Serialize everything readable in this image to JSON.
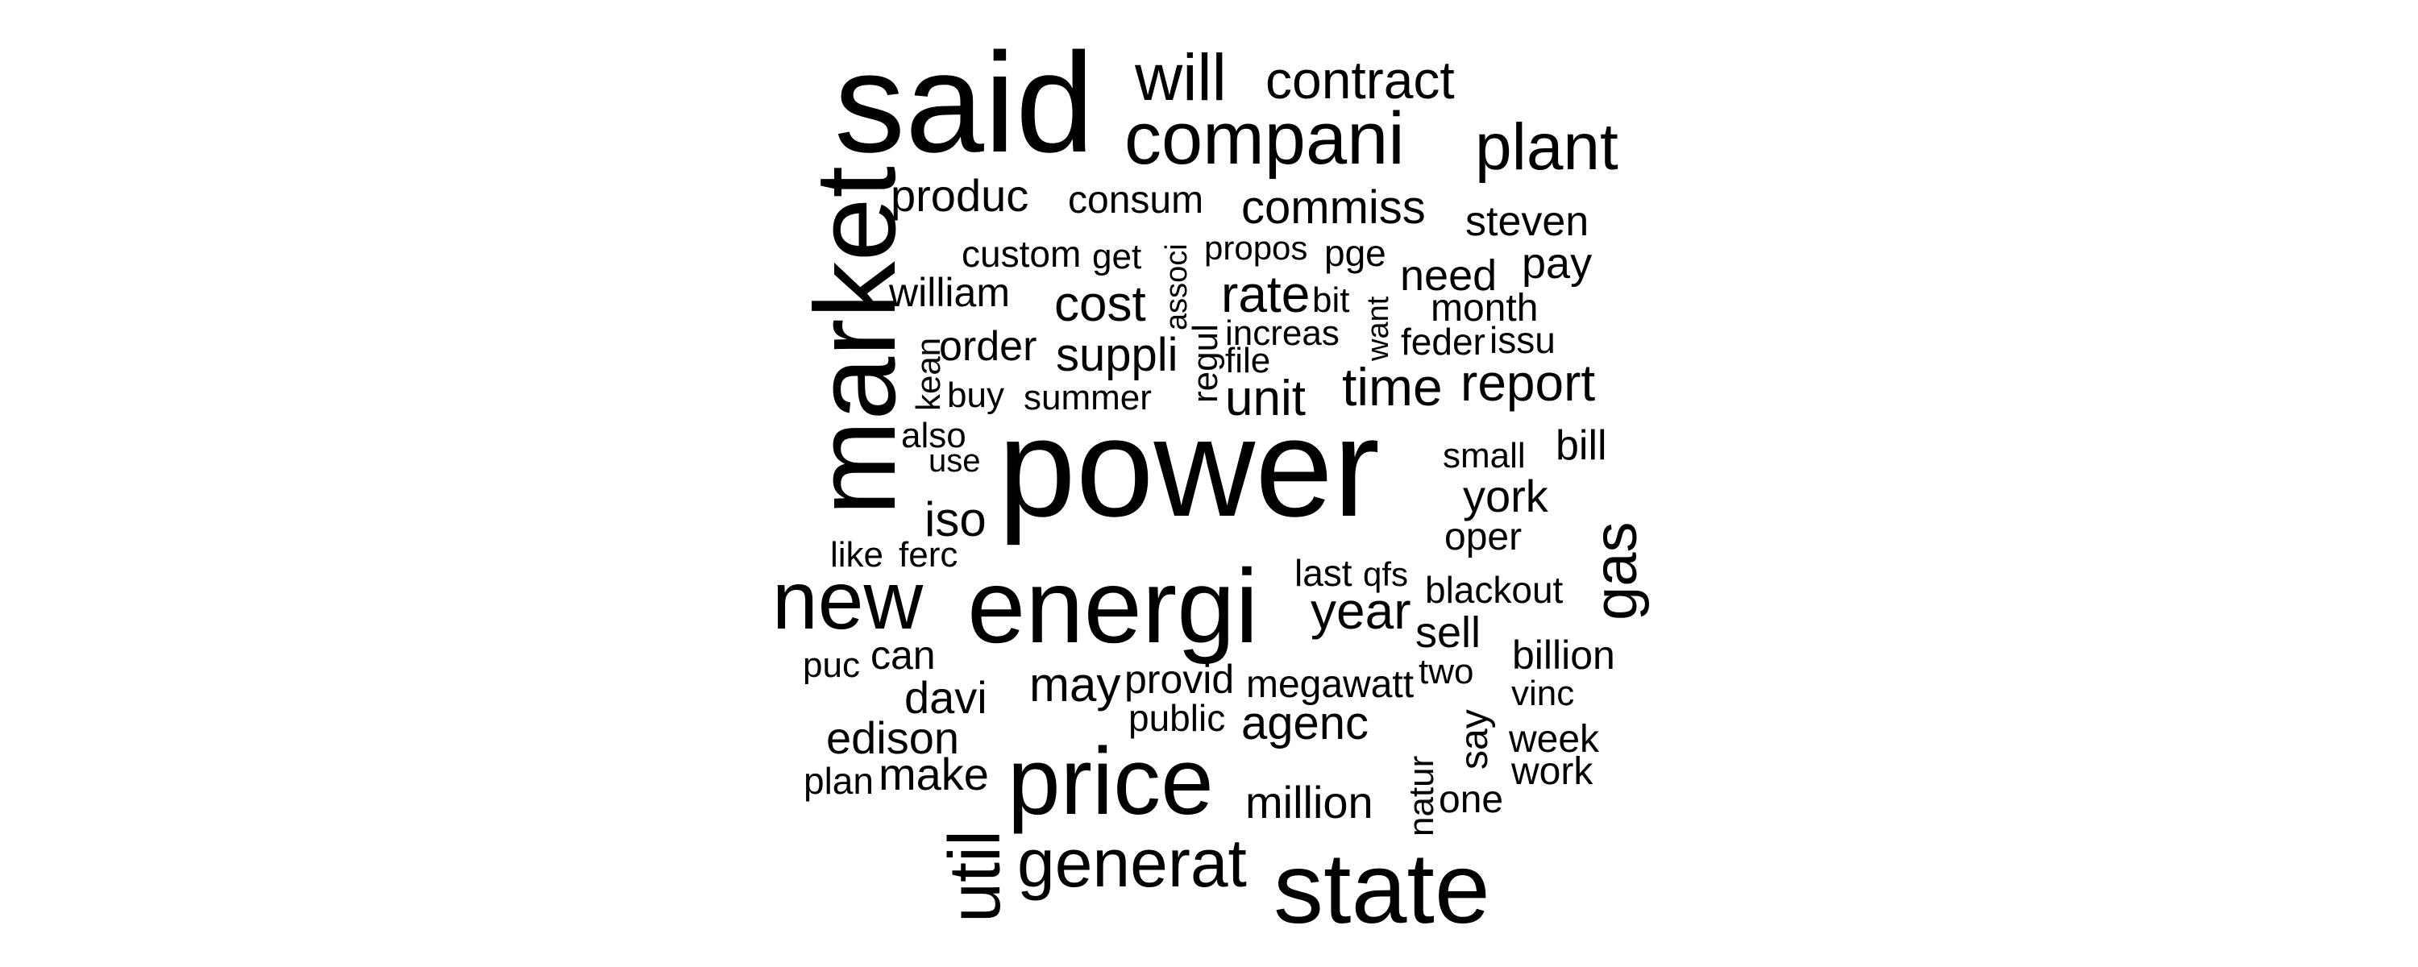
{
  "wordcloud": {
    "words": [
      "said",
      "will",
      "contract",
      "compani",
      "plant",
      "produc",
      "consum",
      "commiss",
      "steven",
      "market",
      "custom",
      "get",
      "associ",
      "propos",
      "pge",
      "pay",
      "william",
      "cost",
      "rate",
      "bit",
      "need",
      "month",
      "kean",
      "order",
      "suppli",
      "regul",
      "increas",
      "file",
      "want",
      "feder",
      "issu",
      "buy",
      "summer",
      "unit",
      "time",
      "report",
      "also",
      "use",
      "power",
      "small",
      "bill",
      "iso",
      "york",
      "gas",
      "oper",
      "like",
      "ferc",
      "new",
      "energi",
      "last",
      "qfs",
      "year",
      "blackout",
      "sell",
      "puc",
      "can",
      "davi",
      "may",
      "provid",
      "megawatt",
      "two",
      "billion",
      "vinc",
      "say",
      "edison",
      "public",
      "agenc",
      "week",
      "plan",
      "make",
      "price",
      "natur",
      "work",
      "one",
      "million",
      "util",
      "generat",
      "state"
    ],
    "color": "#000000"
  }
}
